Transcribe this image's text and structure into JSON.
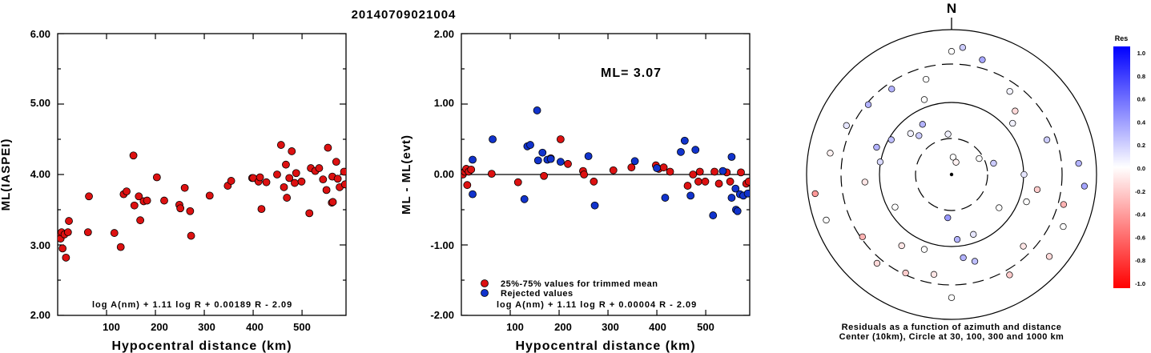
{
  "figure": {
    "title": "20140709021004"
  },
  "chart_data": [
    {
      "type": "scatter",
      "id": "ml-vs-distance",
      "xlabel": "Hypocentral distance (km)",
      "ylabel": "ML(IASPEI)",
      "xlim": [
        0,
        590
      ],
      "ylim": [
        2.0,
        6.0
      ],
      "xticks": [
        "100",
        "200",
        "300",
        "400",
        "500"
      ],
      "yticks": [
        "2.00",
        "3.00",
        "4.00",
        "5.00",
        "6.00"
      ],
      "formula": "log A(nm) + 1.11 log R + 0.00189 R - 2.09",
      "series": [
        {
          "color": "#dd1111",
          "points": [
            [
              3,
              3.13
            ],
            [
              6,
              3.09
            ],
            [
              8,
              3.18
            ],
            [
              10,
              2.95
            ],
            [
              14,
              3.15
            ],
            [
              17,
              2.82
            ],
            [
              21,
              3.18
            ],
            [
              23,
              3.34
            ],
            [
              62,
              3.18
            ],
            [
              64,
              3.69
            ],
            [
              116,
              3.17
            ],
            [
              129,
              2.97
            ],
            [
              135,
              3.72
            ],
            [
              141,
              3.76
            ],
            [
              155,
              4.27
            ],
            [
              157,
              3.56
            ],
            [
              166,
              3.69
            ],
            [
              169,
              3.35
            ],
            [
              176,
              3.62
            ],
            [
              183,
              3.63
            ],
            [
              203,
              3.96
            ],
            [
              218,
              3.63
            ],
            [
              249,
              3.57
            ],
            [
              251,
              3.52
            ],
            [
              260,
              3.81
            ],
            [
              271,
              3.48
            ],
            [
              273,
              3.13
            ],
            [
              311,
              3.7
            ],
            [
              348,
              3.84
            ],
            [
              355,
              3.91
            ],
            [
              398,
              3.95
            ],
            [
              400,
              3.95
            ],
            [
              411,
              3.9
            ],
            [
              414,
              3.96
            ],
            [
              417,
              3.51
            ],
            [
              427,
              3.89
            ],
            [
              449,
              4.0
            ],
            [
              457,
              4.42
            ],
            [
              463,
              3.82
            ],
            [
              467,
              4.14
            ],
            [
              469,
              3.67
            ],
            [
              474,
              3.95
            ],
            [
              479,
              4.33
            ],
            [
              485,
              3.88
            ],
            [
              488,
              4.02
            ],
            [
              499,
              3.9
            ],
            [
              515,
              3.45
            ],
            [
              518,
              4.09
            ],
            [
              527,
              4.05
            ],
            [
              535,
              4.09
            ],
            [
              543,
              3.93
            ],
            [
              550,
              3.78
            ],
            [
              553,
              4.38
            ],
            [
              561,
              3.6
            ],
            [
              562,
              3.97
            ],
            [
              563,
              3.61
            ],
            [
              570,
              4.18
            ],
            [
              573,
              3.94
            ],
            [
              577,
              3.82
            ],
            [
              586,
              4.04
            ],
            [
              588,
              3.86
            ]
          ]
        }
      ]
    },
    {
      "type": "scatter",
      "id": "residual-vs-distance",
      "xlabel": "Hypocentral distance (km)",
      "ylabel": "ML - ML(evt)",
      "xlim": [
        0,
        590
      ],
      "ylim": [
        -2.0,
        2.0
      ],
      "xticks": [
        "100",
        "200",
        "300",
        "400",
        "500"
      ],
      "yticks": [
        "-2.00",
        "-1.00",
        "0.00",
        "1.00",
        "2.00"
      ],
      "ml_label": "ML= 3.07",
      "reference_line": 0.0,
      "formula": "log A(nm) + 1.11 log R + 0.00004 R - 2.09",
      "series": [
        {
          "name": "25%-75% values for trimmed mean",
          "color": "#dd1111",
          "points": [
            [
              3,
              0.0
            ],
            [
              7,
              0.04
            ],
            [
              10,
              0.08
            ],
            [
              12,
              -0.15
            ],
            [
              15,
              0.04
            ],
            [
              20,
              0.07
            ],
            [
              62,
              0.01
            ],
            [
              116,
              -0.11
            ],
            [
              169,
              -0.02
            ],
            [
              183,
              0.23
            ],
            [
              203,
              0.5
            ],
            [
              218,
              0.15
            ],
            [
              249,
              0.05
            ],
            [
              251,
              0.0
            ],
            [
              271,
              -0.1
            ],
            [
              311,
              0.06
            ],
            [
              348,
              0.1
            ],
            [
              398,
              0.13
            ],
            [
              404,
              0.08
            ],
            [
              414,
              0.1
            ],
            [
              427,
              0.04
            ],
            [
              463,
              -0.16
            ],
            [
              474,
              0.0
            ],
            [
              485,
              -0.1
            ],
            [
              488,
              0.04
            ],
            [
              499,
              -0.1
            ],
            [
              518,
              0.04
            ],
            [
              527,
              -0.13
            ],
            [
              543,
              0.03
            ],
            [
              550,
              -0.1
            ],
            [
              572,
              0.03
            ],
            [
              583,
              -0.13
            ],
            [
              588,
              -0.1
            ]
          ]
        },
        {
          "name": "Rejected values",
          "color": "#1133cc",
          "points": [
            [
              23,
              0.21
            ],
            [
              23,
              -0.28
            ],
            [
              64,
              0.5
            ],
            [
              129,
              -0.35
            ],
            [
              135,
              0.4
            ],
            [
              141,
              0.42
            ],
            [
              155,
              0.91
            ],
            [
              157,
              0.2
            ],
            [
              166,
              0.31
            ],
            [
              176,
              0.21
            ],
            [
              183,
              0.22
            ],
            [
              203,
              0.18
            ],
            [
              260,
              0.26
            ],
            [
              273,
              -0.44
            ],
            [
              355,
              0.19
            ],
            [
              400,
              0.09
            ],
            [
              417,
              -0.33
            ],
            [
              449,
              0.32
            ],
            [
              457,
              0.48
            ],
            [
              469,
              -0.3
            ],
            [
              479,
              0.35
            ],
            [
              515,
              -0.58
            ],
            [
              535,
              0.05
            ],
            [
              553,
              -0.33
            ],
            [
              553,
              0.25
            ],
            [
              561,
              -0.2
            ],
            [
              562,
              -0.5
            ],
            [
              565,
              -0.52
            ],
            [
              570,
              -0.28
            ],
            [
              577,
              -0.3
            ],
            [
              586,
              -0.27
            ]
          ]
        }
      ]
    },
    {
      "type": "scatter",
      "id": "azimuth-residual-map",
      "north_label": "N",
      "caption_line1": "Residuals as a function of azimuth and distance",
      "caption_line2": "Center (10km), Circle at 30, 100, 300 and 1000 km",
      "rings_km": [
        30,
        100,
        300,
        1000
      ],
      "colorbar": {
        "title": "Res",
        "ticks": [
          "1.0",
          "0.8",
          "0.6",
          "0.4",
          "0.2",
          "0.0",
          "-0.2",
          "-0.4",
          "-0.6",
          "-0.8",
          "-1.0"
        ]
      },
      "stations": [
        [
          5,
          12,
          0.0
        ],
        [
          355,
          28,
          0.05
        ],
        [
          320,
          35,
          0.2
        ],
        [
          20,
          9,
          -0.05
        ],
        [
          60,
          22,
          0.0
        ],
        [
          75,
          30,
          0.2
        ],
        [
          125,
          40,
          0.0
        ],
        [
          160,
          44,
          0.1
        ],
        [
          175,
          45,
          0.3
        ],
        [
          185,
          30,
          0.4
        ],
        [
          200,
          55,
          0.0
        ],
        [
          215,
          60,
          -0.1
        ],
        [
          240,
          45,
          0.0
        ],
        [
          265,
          60,
          -0.1
        ],
        [
          280,
          50,
          0.15
        ],
        [
          290,
          55,
          0.3
        ],
        [
          300,
          48,
          0.25
        ],
        [
          315,
          40,
          0.05
        ],
        [
          330,
          40,
          0.3
        ],
        [
          340,
          55,
          0.0
        ],
        [
          35,
          70,
          0.05
        ],
        [
          45,
          62,
          -0.15
        ],
        [
          70,
          70,
          0.2
        ],
        [
          90,
          50,
          0.1
        ],
        [
          100,
          60,
          -0.2
        ],
        [
          110,
          55,
          0.0
        ],
        [
          135,
          70,
          -0.1
        ],
        [
          150,
          80,
          -0.2
        ],
        [
          165,
          62,
          0.25
        ],
        [
          172,
          58,
          0.3
        ],
        [
          180,
          85,
          0.0
        ],
        [
          190,
          70,
          -0.1
        ],
        [
          205,
          75,
          -0.2
        ],
        [
          220,
          80,
          -0.15
        ],
        [
          235,
          75,
          -0.3
        ],
        [
          250,
          92,
          0.0
        ],
        [
          262,
          95,
          -0.4
        ],
        [
          280,
          85,
          -0.05
        ],
        [
          295,
          80,
          0.1
        ],
        [
          310,
          75,
          0.3
        ],
        [
          325,
          72,
          0.3
        ],
        [
          345,
          68,
          0.0
        ],
        [
          5,
          88,
          0.2
        ],
        [
          15,
          82,
          0.35
        ],
        [
          0,
          85,
          0.0
        ],
        [
          50,
          55,
          0.05
        ],
        [
          85,
          88,
          0.3
        ],
        [
          95,
          92,
          0.35
        ],
        [
          105,
          80,
          -0.3
        ],
        [
          115,
          85,
          0.0
        ],
        [
          130,
          88,
          -0.15
        ]
      ]
    }
  ]
}
